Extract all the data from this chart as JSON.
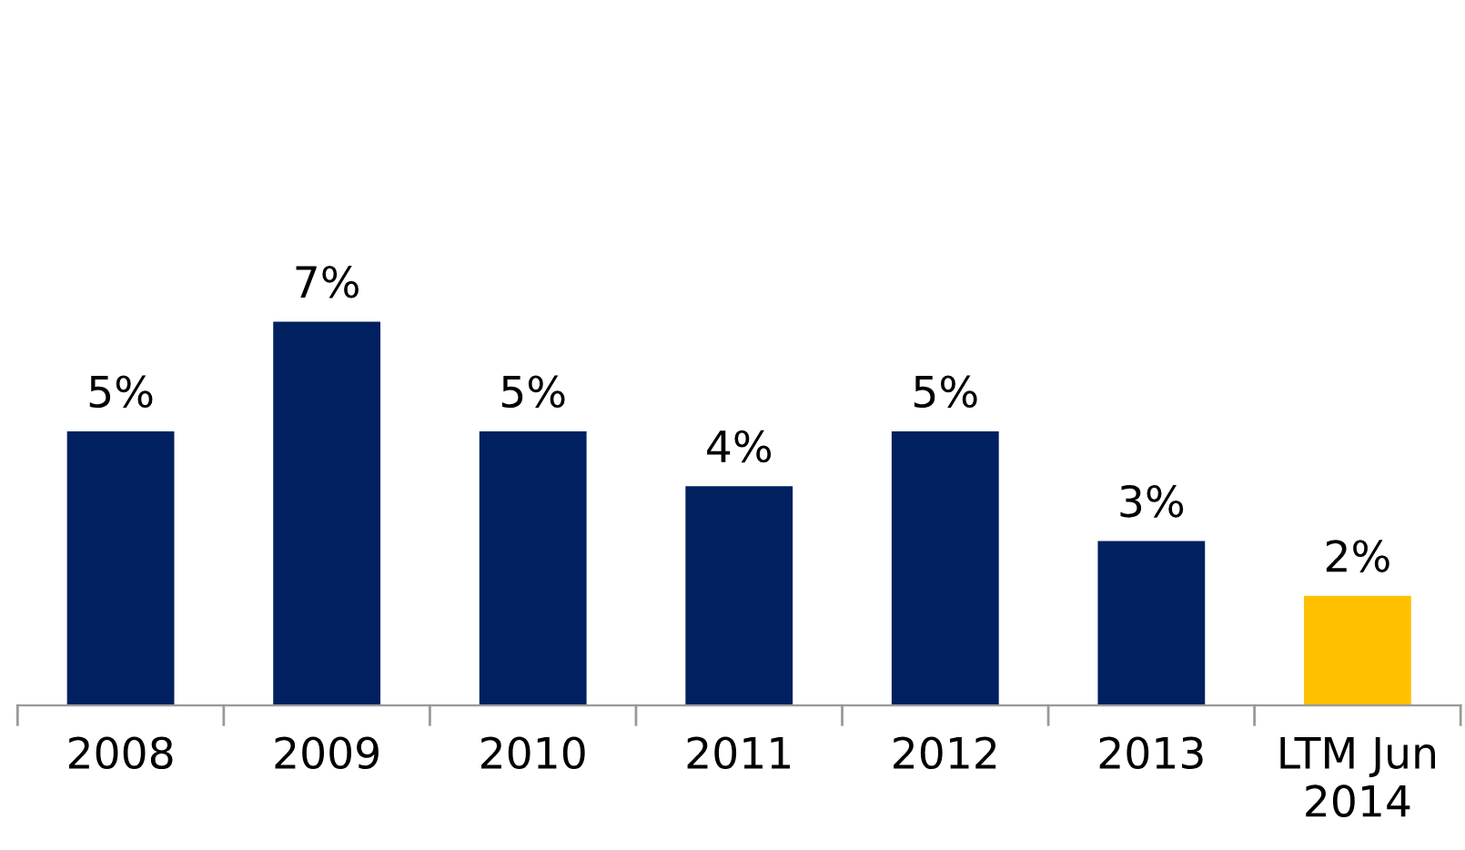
{
  "chart_data": {
    "type": "bar",
    "categories": [
      "2008",
      "2009",
      "2010",
      "2011",
      "2012",
      "2013",
      "LTM Jun\n2014"
    ],
    "values": [
      5,
      7,
      5,
      4,
      5,
      3,
      2
    ],
    "colors": [
      "#002060",
      "#002060",
      "#002060",
      "#002060",
      "#002060",
      "#002060",
      "#ffc000"
    ],
    "value_labels": [
      "5%",
      "7%",
      "5%",
      "4%",
      "5%",
      "3%",
      "2%"
    ],
    "grid": false,
    "legend": false
  }
}
